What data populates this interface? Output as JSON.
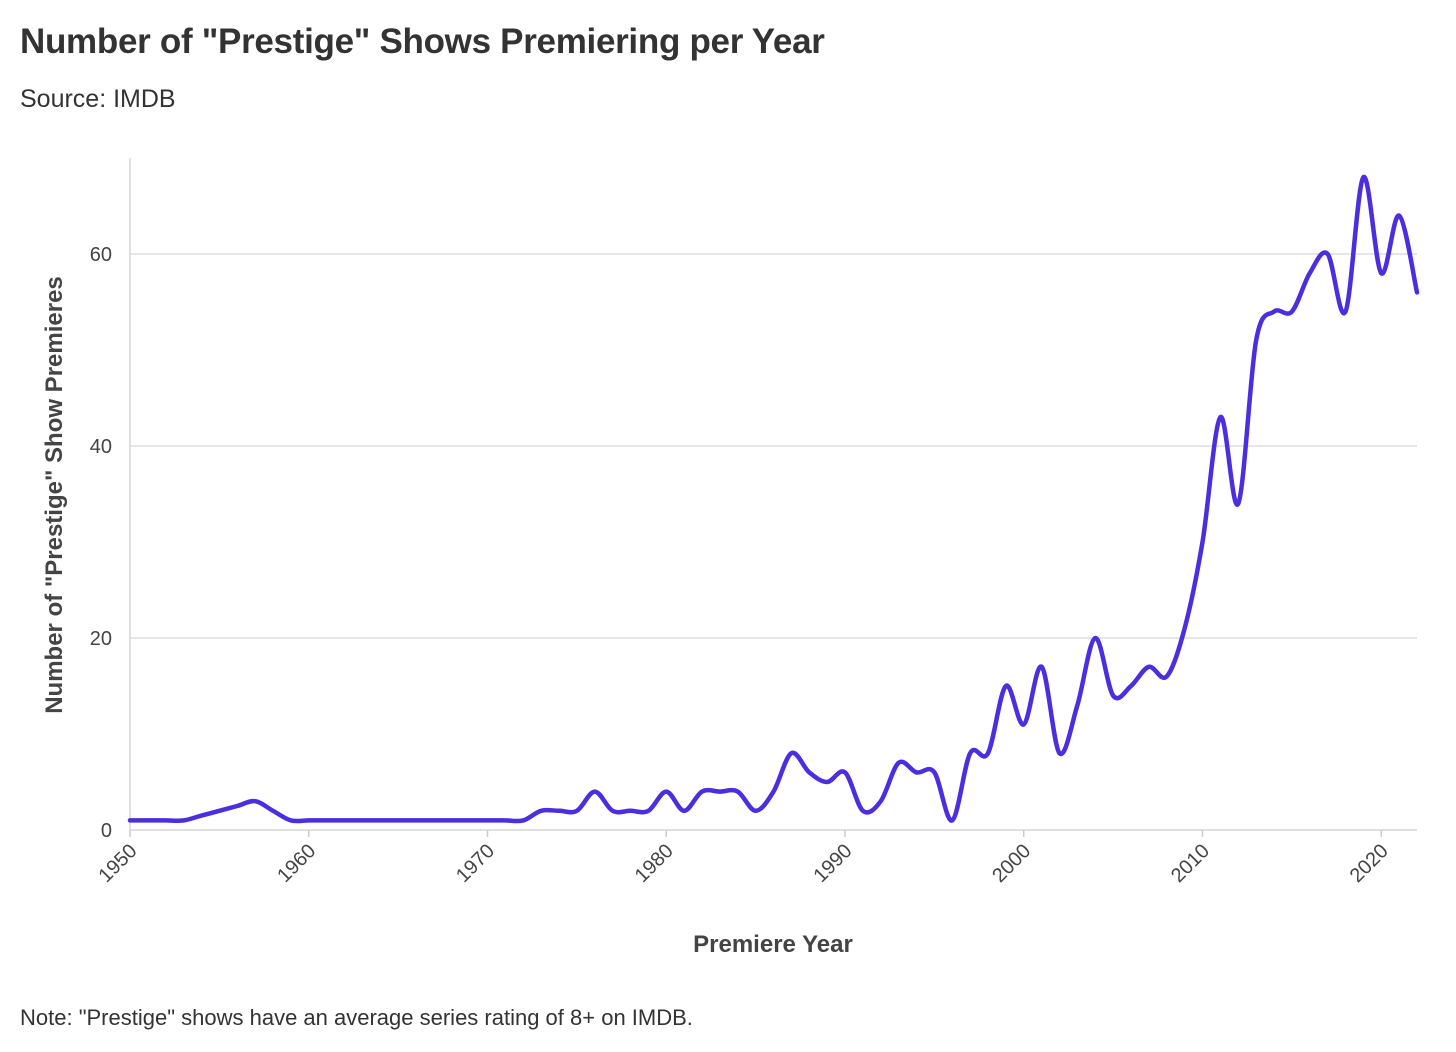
{
  "chart_data": {
    "type": "line",
    "title": "Number of \"Prestige\" Shows Premiering per Year",
    "subtitle": "Source: IMDB",
    "note": "Note: \"Prestige\" shows have an average series rating of 8+ on IMDB.",
    "xlabel": "Premiere Year",
    "ylabel": "Number of \"Prestige\" Show Premieres",
    "xlim": [
      1950,
      2022
    ],
    "ylim": [
      0,
      70
    ],
    "x_ticks": [
      1950,
      1960,
      1970,
      1980,
      1990,
      2000,
      2010,
      2020
    ],
    "y_ticks": [
      0,
      20,
      40,
      60
    ],
    "grid": "horizontal",
    "line_color": "#4a2ee0",
    "x": [
      1950,
      1951,
      1952,
      1953,
      1954,
      1955,
      1956,
      1957,
      1958,
      1959,
      1960,
      1961,
      1962,
      1963,
      1964,
      1965,
      1966,
      1967,
      1968,
      1969,
      1970,
      1971,
      1972,
      1973,
      1974,
      1975,
      1976,
      1977,
      1978,
      1979,
      1980,
      1981,
      1982,
      1983,
      1984,
      1985,
      1986,
      1987,
      1988,
      1989,
      1990,
      1991,
      1992,
      1993,
      1994,
      1995,
      1996,
      1997,
      1998,
      1999,
      2000,
      2001,
      2002,
      2003,
      2004,
      2005,
      2006,
      2007,
      2008,
      2009,
      2010,
      2011,
      2012,
      2013,
      2014,
      2015,
      2016,
      2017,
      2018,
      2019,
      2020,
      2021,
      2022
    ],
    "values": [
      1,
      1,
      1,
      1,
      1.5,
      2,
      2.5,
      3,
      2,
      1,
      1,
      1,
      1,
      1,
      1,
      1,
      1,
      1,
      1,
      1,
      1,
      1,
      1,
      2,
      2,
      2,
      4,
      2,
      2,
      2,
      4,
      2,
      4,
      4,
      4,
      2,
      4,
      8,
      6,
      5,
      6,
      2,
      3,
      7,
      6,
      6,
      1,
      8,
      8,
      15,
      11,
      17,
      8,
      13,
      20,
      14,
      15,
      17,
      16,
      21,
      30,
      43,
      34,
      51,
      54,
      54,
      58,
      60,
      54,
      68,
      58,
      64,
      56
    ]
  }
}
